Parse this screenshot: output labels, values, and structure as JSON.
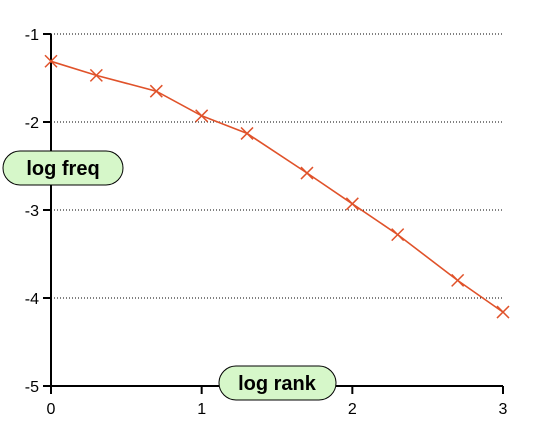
{
  "chart_data": {
    "type": "line",
    "title": "",
    "xlabel": "log rank",
    "ylabel": "log freq",
    "xlim": [
      0,
      3
    ],
    "ylim": [
      -5,
      -1
    ],
    "x_ticks": [
      0,
      1,
      2,
      3
    ],
    "y_ticks": [
      -1,
      -2,
      -3,
      -4,
      -5
    ],
    "x_tick_labels": [
      "0",
      "1",
      "2",
      "3"
    ],
    "y_tick_labels": [
      "-1",
      "-2",
      "-3",
      "-4",
      "-5"
    ],
    "grid": "horizontal-dotted",
    "series": [
      {
        "color": "#e0522a",
        "marker": "x",
        "x": [
          0,
          0.301,
          0.699,
          1.0,
          1.301,
          1.699,
          2.0,
          2.301,
          2.699,
          3.0
        ],
        "y": [
          -1.31,
          -1.47,
          -1.65,
          -1.93,
          -2.13,
          -2.58,
          -2.93,
          -3.28,
          -3.8,
          -4.16
        ]
      }
    ]
  }
}
